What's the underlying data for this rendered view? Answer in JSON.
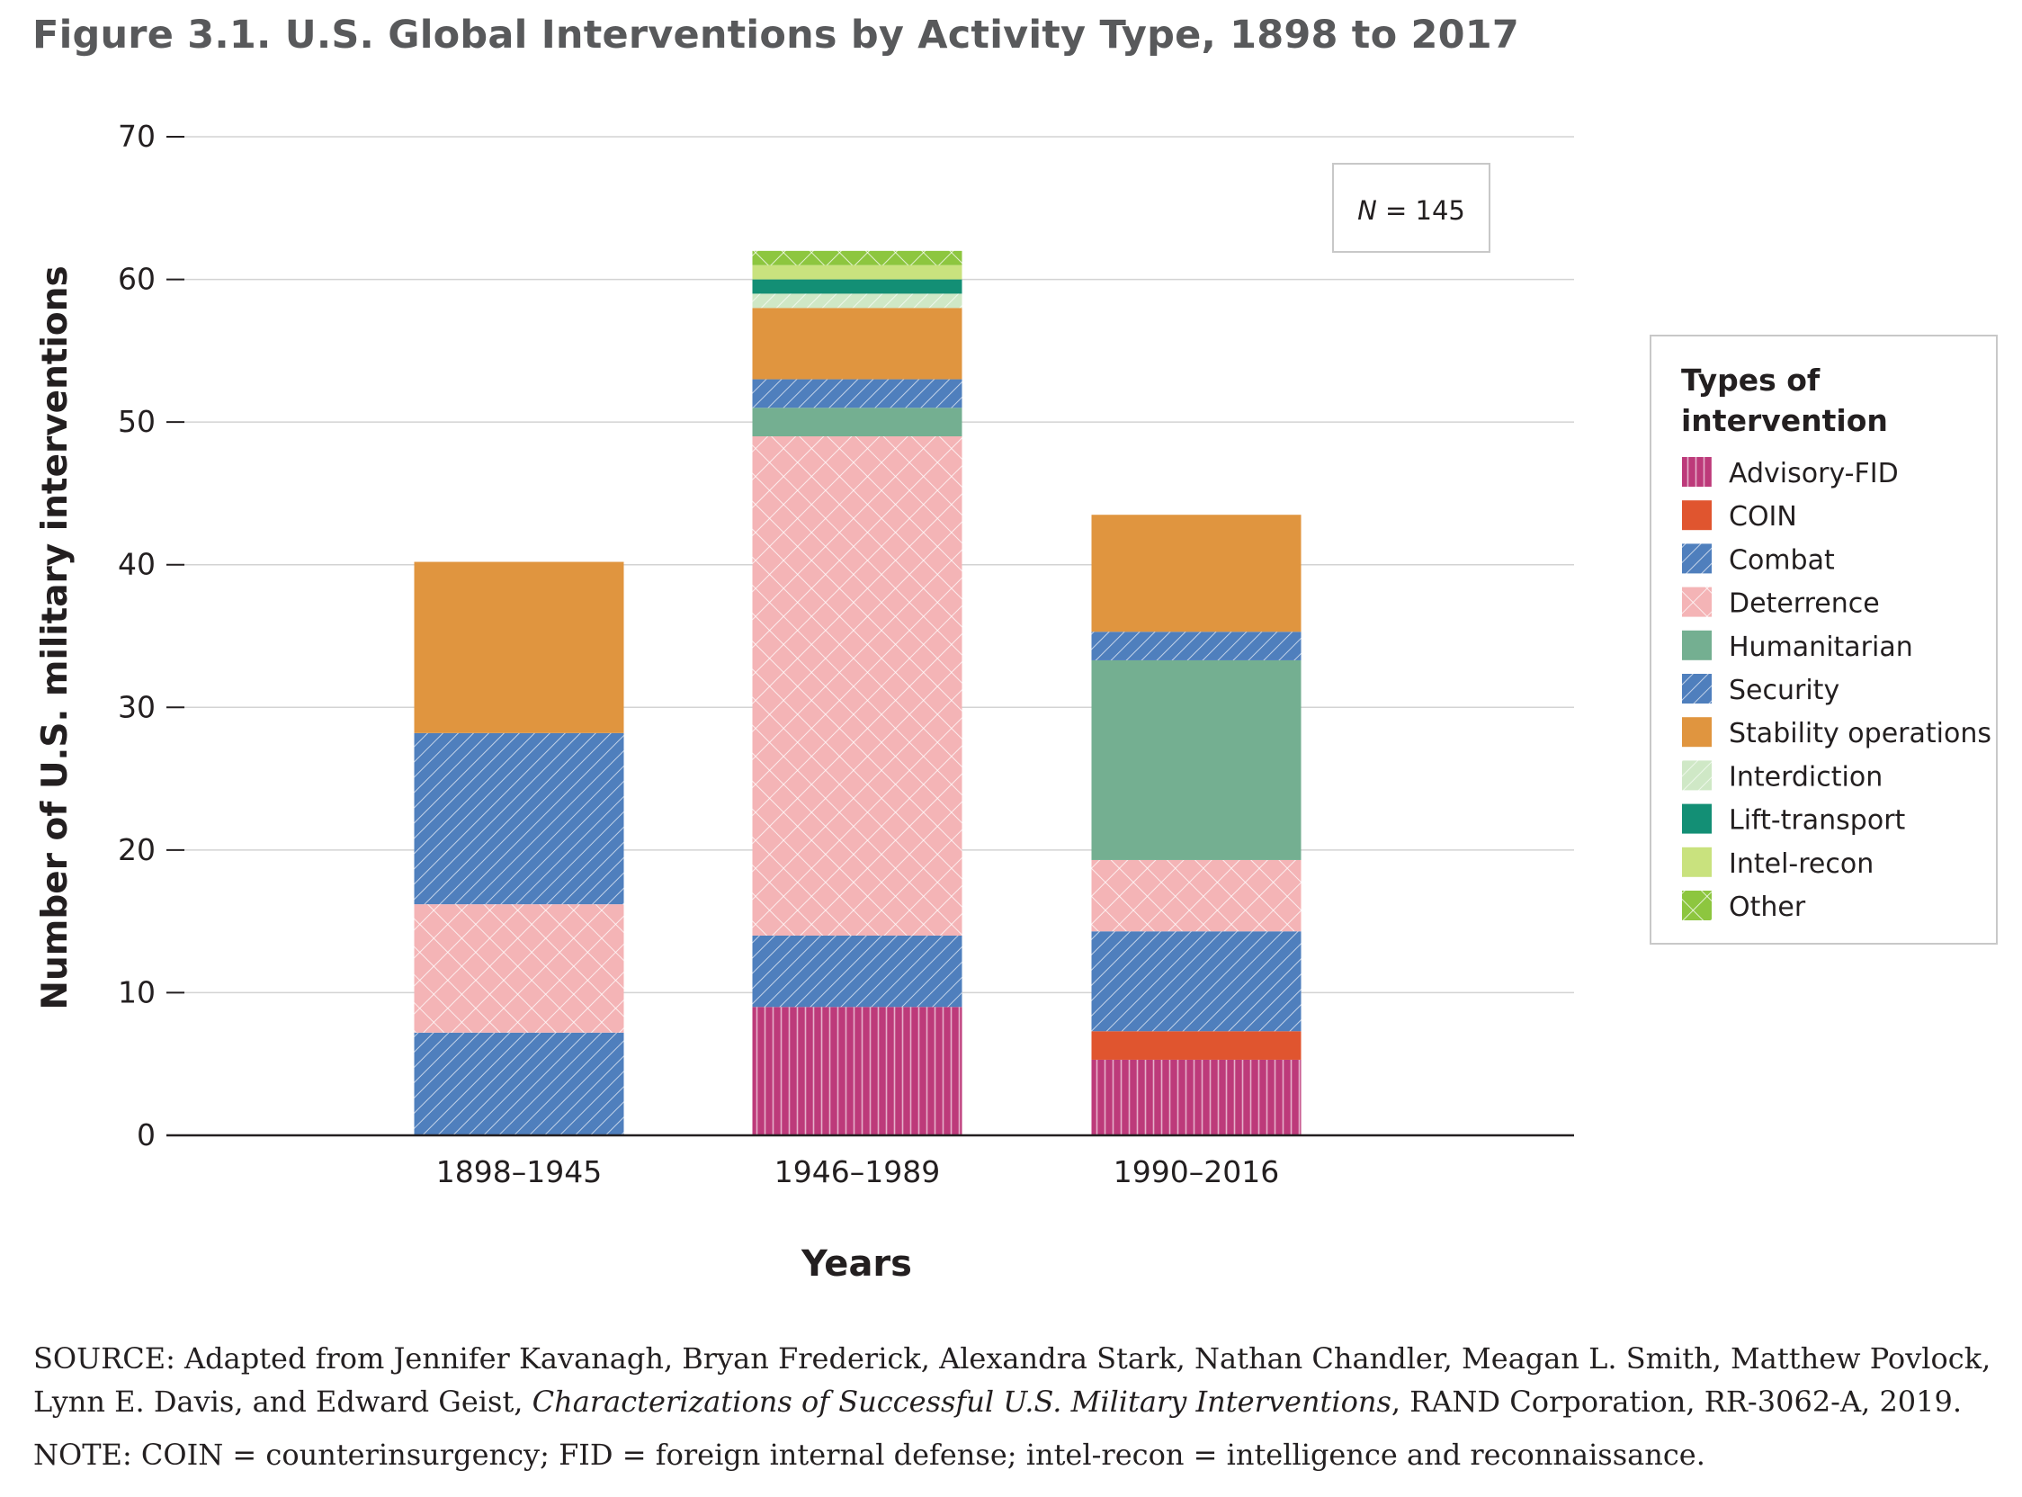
{
  "figure_title": "Figure 3.1. U.S. Global Interventions by Activity Type, 1898 to 2017",
  "source": {
    "prefix": "SOURCE: Adapted from Jennifer Kavanagh, Bryan Frederick, Alexandra Stark, Nathan Chandler, Meagan L. Smith, Matthew Povlock, Lynn E. Davis, and Edward Geist, ",
    "italic_title": "Characterizations of Successful U.S. Military Interventions",
    "suffix": ", RAND Corporation, RR-3062-A, 2019."
  },
  "note": "NOTE: COIN = counterinsurgency; FID = foreign internal defense; intel-recon = intelligence and reconnaissance.",
  "chart_data": {
    "type": "bar",
    "stacked": true,
    "xlabel": "Years",
    "ylabel": "Number of U.S. military interventions",
    "ylim": [
      0,
      70
    ],
    "yticks": [
      0,
      10,
      20,
      30,
      40,
      50,
      60,
      70
    ],
    "grid": true,
    "annotation": {
      "italic": "N",
      "rest": " = 145"
    },
    "legend_title": "Types of intervention",
    "legend_position": "right",
    "categories": [
      "1898–1945",
      "1946–1989",
      "1990–2016"
    ],
    "series": [
      {
        "name": "Advisory-FID",
        "color": "#bd3a7a",
        "pattern": "vertical-lines",
        "values": [
          0,
          9,
          5.3
        ]
      },
      {
        "name": "COIN",
        "color": "#e0552f",
        "pattern": "solid",
        "values": [
          0,
          0,
          2
        ]
      },
      {
        "name": "Combat",
        "color": "#4f7fbd",
        "pattern": "diagonal-lines",
        "values": [
          7.2,
          5,
          7
        ]
      },
      {
        "name": "Deterrence",
        "color": "#f4b4b6",
        "pattern": "crosshatch",
        "values": [
          9,
          35,
          5
        ]
      },
      {
        "name": "Humanitarian",
        "color": "#74af91",
        "pattern": "solid",
        "values": [
          0,
          2,
          14
        ]
      },
      {
        "name": "Security",
        "color": "#4f7fbd",
        "pattern": "diagonal-lines",
        "values": [
          12,
          2,
          2
        ]
      },
      {
        "name": "Stability operations",
        "color": "#e0953f",
        "pattern": "solid",
        "values": [
          12,
          5,
          8.2
        ]
      },
      {
        "name": "Interdiction",
        "color": "#cfe8c6",
        "pattern": "diagonal-lines",
        "values": [
          0,
          1,
          0
        ]
      },
      {
        "name": "Lift-transport",
        "color": "#138f75",
        "pattern": "solid",
        "values": [
          0,
          1,
          0
        ]
      },
      {
        "name": "Intel-recon",
        "color": "#c9e27e",
        "pattern": "solid",
        "values": [
          0,
          1,
          0
        ]
      },
      {
        "name": "Other",
        "color": "#8dc63f",
        "pattern": "crosshatch",
        "values": [
          0,
          1,
          0
        ]
      }
    ]
  }
}
